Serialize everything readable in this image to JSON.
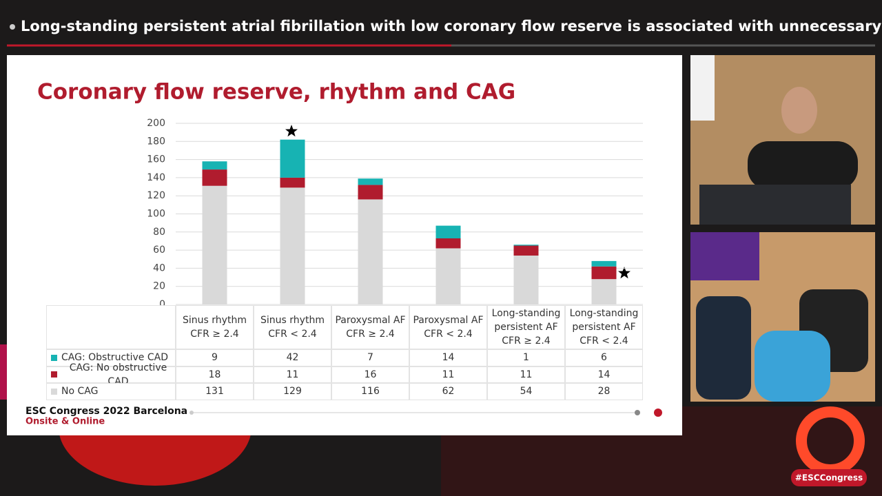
{
  "header": {
    "title": "Long-standing persistent atrial fibrillation with low coronary flow reserve is associated with unnecessary coronary…"
  },
  "chart_data": {
    "type": "stacked_bar",
    "title": "Coronary flow reserve, rhythm and CAG",
    "categories": [
      "Sinus rhythm\nCFR ≥ 2.4",
      "Sinus rhythm\nCFR < 2.4",
      "Paroxysmal AF\nCFR ≥ 2.4",
      "Paroxysmal AF\nCFR < 2.4",
      "Long-standing\npersistent AF\nCFR ≥ 2.4",
      "Long-standing\npersistent AF\nCFR < 2.4"
    ],
    "series": [
      {
        "name": "CAG: Obstructive CAD",
        "color": "#17b3b3",
        "values": [
          9,
          42,
          7,
          14,
          1,
          6
        ]
      },
      {
        "name": "CAG: No obstructive CAD",
        "color": "#b01c2e",
        "values": [
          18,
          11,
          16,
          11,
          11,
          14
        ]
      },
      {
        "name": "No CAG",
        "color": "#d9d9d9",
        "values": [
          131,
          129,
          116,
          62,
          54,
          28
        ]
      }
    ],
    "ylim": [
      0,
      200
    ],
    "yticks": [
      0,
      20,
      40,
      60,
      80,
      100,
      120,
      140,
      160,
      180,
      200
    ],
    "grid": true
  },
  "footer": {
    "event": "ESC Congress 2022 Barcelona",
    "subtitle": "Onsite & Online",
    "hashtag": "#ESCCongress"
  }
}
